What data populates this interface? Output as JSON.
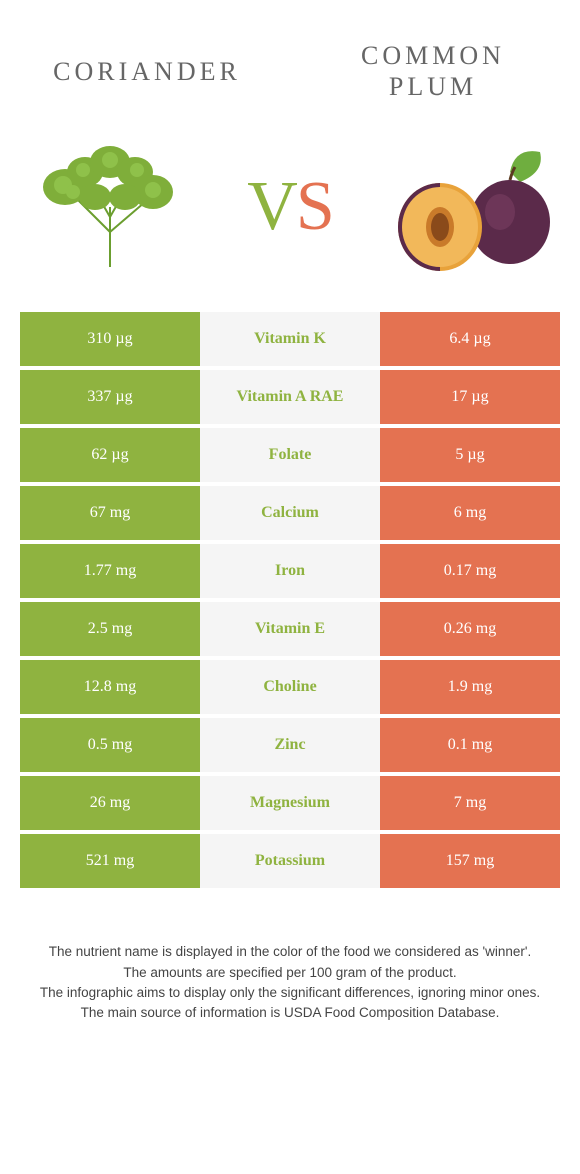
{
  "foodA": {
    "name": "Coriander"
  },
  "foodB": {
    "name": "Common Plum"
  },
  "vs": {
    "v": "V",
    "s": "S"
  },
  "colors": {
    "foodA": "#8fb340",
    "foodB": "#e47251",
    "midBg": "#f5f5f5",
    "text": "#555"
  },
  "rows": [
    {
      "nutrient": "Vitamin K",
      "a": "310 µg",
      "b": "6.4 µg",
      "winner": "a"
    },
    {
      "nutrient": "Vitamin A RAE",
      "a": "337 µg",
      "b": "17 µg",
      "winner": "a"
    },
    {
      "nutrient": "Folate",
      "a": "62 µg",
      "b": "5 µg",
      "winner": "a"
    },
    {
      "nutrient": "Calcium",
      "a": "67 mg",
      "b": "6 mg",
      "winner": "a"
    },
    {
      "nutrient": "Iron",
      "a": "1.77 mg",
      "b": "0.17 mg",
      "winner": "a"
    },
    {
      "nutrient": "Vitamin E",
      "a": "2.5 mg",
      "b": "0.26 mg",
      "winner": "a"
    },
    {
      "nutrient": "Choline",
      "a": "12.8 mg",
      "b": "1.9 mg",
      "winner": "a"
    },
    {
      "nutrient": "Zinc",
      "a": "0.5 mg",
      "b": "0.1 mg",
      "winner": "a"
    },
    {
      "nutrient": "Magnesium",
      "a": "26 mg",
      "b": "7 mg",
      "winner": "a"
    },
    {
      "nutrient": "Potassium",
      "a": "521 mg",
      "b": "157 mg",
      "winner": "a"
    }
  ],
  "footer": {
    "l1": "The nutrient name is displayed in the color of the food we considered as 'winner'.",
    "l2": "The amounts are specified per 100 gram of the product.",
    "l3": "The infographic aims to display only the significant differences, ignoring minor ones.",
    "l4": "The main source of information is USDA Food Composition Database."
  }
}
